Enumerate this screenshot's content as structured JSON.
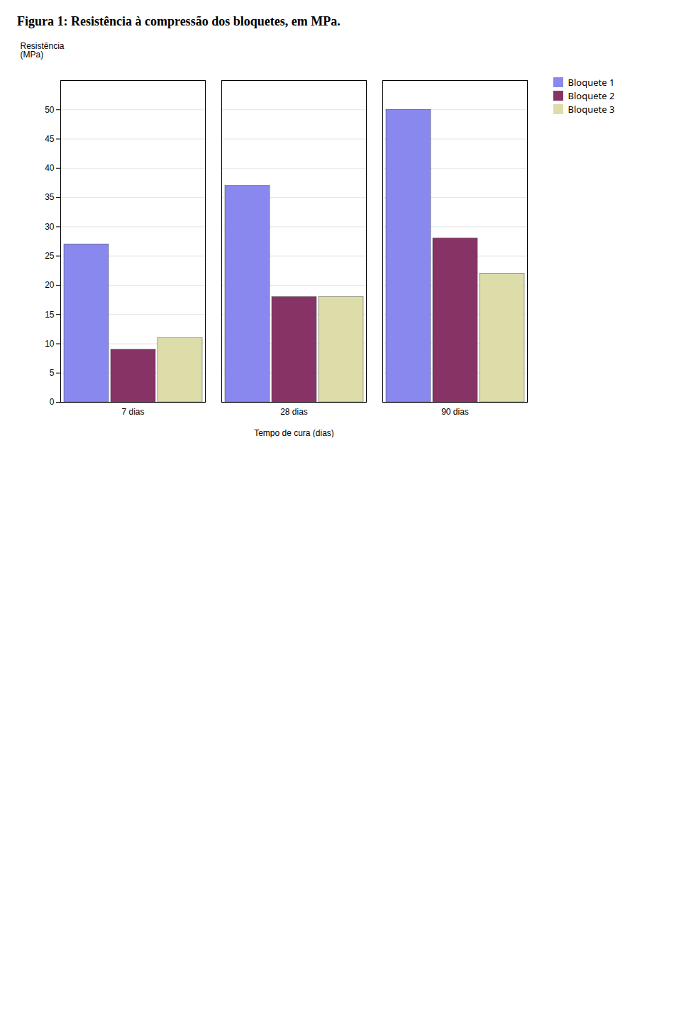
{
  "chart_data": {
    "type": "bar",
    "title": "Figura 1: Resistência à compressão dos bloquetes, em MPa.",
    "categories": [
      "7 dias",
      "28 dias",
      "90 dias"
    ],
    "series": [
      {
        "name": "Bloquete 1",
        "color": "#8888ee",
        "values": [
          27.0,
          37.0,
          50.0
        ]
      },
      {
        "name": "Bloquete 2",
        "color": "#883366",
        "values": [
          9.0,
          18.0,
          28.0
        ]
      },
      {
        "name": "Bloquete 3",
        "color": "#ddddaa",
        "values": [
          11.0,
          18.0,
          22.0
        ]
      }
    ],
    "xlabel": "Tempo de cura (dias)",
    "ylabel": "Resistência\n(MPa)",
    "ylim": [
      0,
      55
    ],
    "yticks": [
      0,
      5,
      10,
      15,
      20,
      25,
      30,
      35,
      40,
      45,
      50
    ],
    "grid": true,
    "legend": "upper right"
  }
}
